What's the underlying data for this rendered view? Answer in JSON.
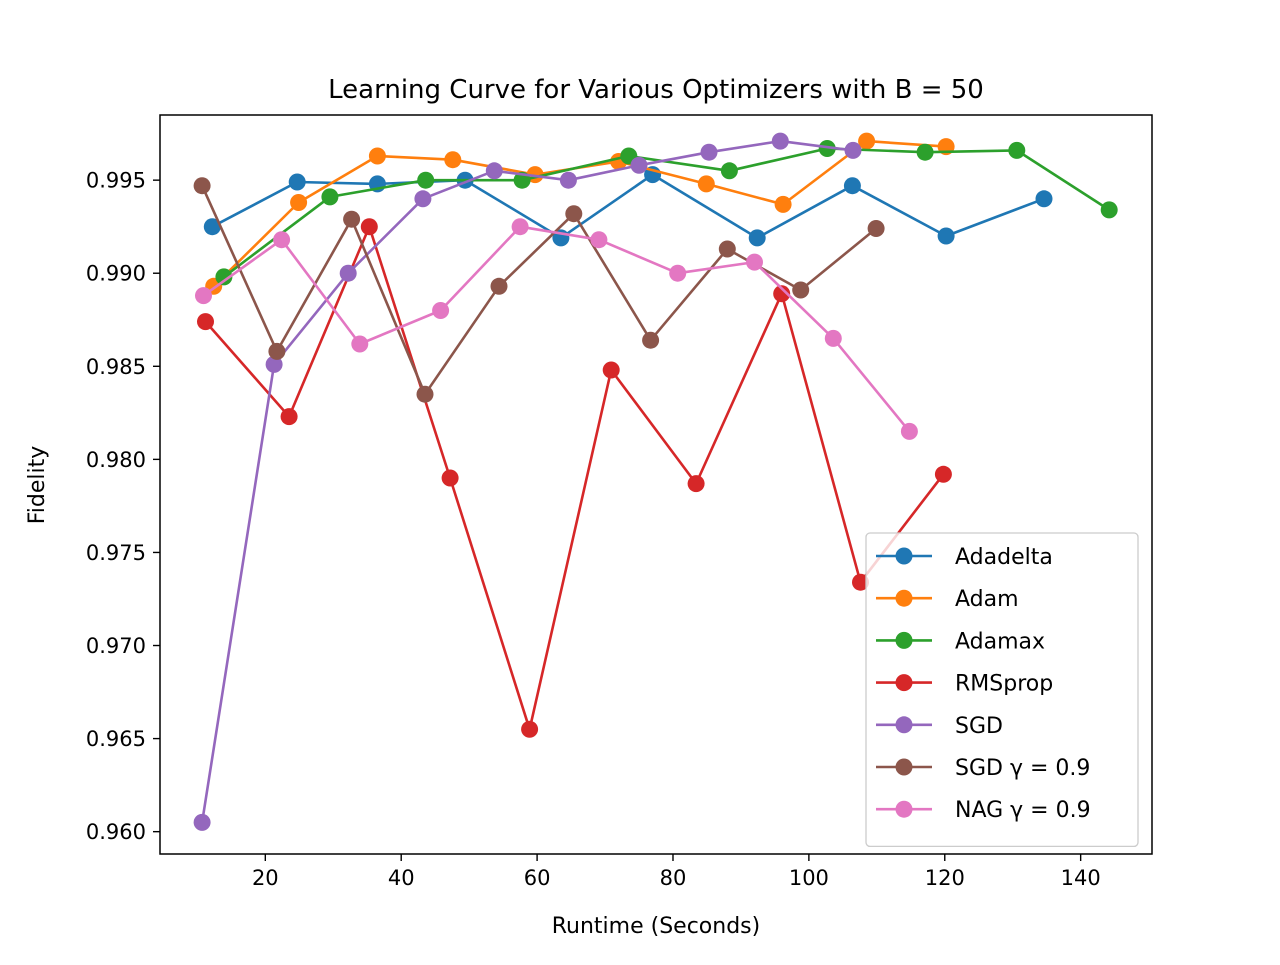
{
  "chart_data": {
    "type": "line",
    "title": "Learning Curve for Various Optimizers with B = 50",
    "xlabel": "Runtime (Seconds)",
    "ylabel": "Fidelity",
    "xlim": [
      4.5,
      150.5
    ],
    "ylim": [
      0.9588,
      0.9985
    ],
    "xticks": [
      20,
      40,
      60,
      80,
      100,
      120,
      140
    ],
    "xtick_labels": [
      "20",
      "40",
      "60",
      "80",
      "100",
      "120",
      "140"
    ],
    "yticks": [
      0.96,
      0.965,
      0.97,
      0.975,
      0.98,
      0.985,
      0.99,
      0.995
    ],
    "ytick_labels": [
      "0.960",
      "0.965",
      "0.970",
      "0.975",
      "0.980",
      "0.985",
      "0.990",
      "0.995"
    ],
    "grid": false,
    "legend_position": "lower right",
    "series": [
      {
        "name": "Adadelta",
        "color": "#1f77b4",
        "x": [
          12.2,
          24.7,
          36.5,
          49.4,
          63.5,
          77.0,
          92.4,
          106.4,
          120.2,
          134.6
        ],
        "y": [
          0.9925,
          0.9949,
          0.9948,
          0.995,
          0.9919,
          0.9953,
          0.9919,
          0.9947,
          0.992,
          0.994
        ]
      },
      {
        "name": "Adam",
        "color": "#ff7f0e",
        "x": [
          12.4,
          24.9,
          36.5,
          47.6,
          59.7,
          72.0,
          84.9,
          96.2,
          108.5,
          120.2
        ],
        "y": [
          0.9893,
          0.9938,
          0.9963,
          0.9961,
          0.9953,
          0.996,
          0.9948,
          0.9937,
          0.9971,
          0.9968
        ]
      },
      {
        "name": "Adamax",
        "color": "#2ca02c",
        "x": [
          13.9,
          29.5,
          43.6,
          57.8,
          73.5,
          88.3,
          102.7,
          117.1,
          130.6,
          144.2
        ],
        "y": [
          0.9898,
          0.9941,
          0.995,
          0.995,
          0.9963,
          0.9955,
          0.9967,
          0.9965,
          0.9966,
          0.9934
        ]
      },
      {
        "name": "RMSprop",
        "color": "#d62728",
        "x": [
          11.2,
          23.5,
          35.3,
          47.2,
          58.9,
          70.9,
          83.4,
          96.0,
          107.6,
          119.8
        ],
        "y": [
          0.9874,
          0.9823,
          0.9925,
          0.979,
          0.9655,
          0.9848,
          0.9787,
          0.9889,
          0.9734,
          0.9792
        ]
      },
      {
        "name": "SGD",
        "color": "#9467bd",
        "x": [
          10.7,
          21.3,
          32.2,
          43.2,
          53.7,
          64.6,
          75.0,
          85.3,
          95.8,
          106.5
        ],
        "y": [
          0.9605,
          0.9851,
          0.99,
          0.994,
          0.9955,
          0.995,
          0.9958,
          0.9965,
          0.9971,
          0.9966
        ]
      },
      {
        "name": "SGD γ = 0.9",
        "color": "#8c564b",
        "x": [
          10.7,
          21.7,
          32.7,
          43.5,
          54.4,
          65.4,
          76.7,
          88.0,
          98.8,
          109.9
        ],
        "y": [
          0.9947,
          0.9858,
          0.9929,
          0.9835,
          0.9893,
          0.9932,
          0.9864,
          0.9913,
          0.9891,
          0.9924
        ]
      },
      {
        "name": "NAG γ = 0.9",
        "color": "#e377c2",
        "x": [
          10.9,
          22.4,
          33.9,
          45.8,
          57.5,
          69.1,
          80.7,
          92.0,
          103.6,
          114.8
        ],
        "y": [
          0.9888,
          0.9918,
          0.9862,
          0.988,
          0.9925,
          0.9918,
          0.99,
          0.9906,
          0.9865,
          0.9815
        ]
      }
    ]
  }
}
